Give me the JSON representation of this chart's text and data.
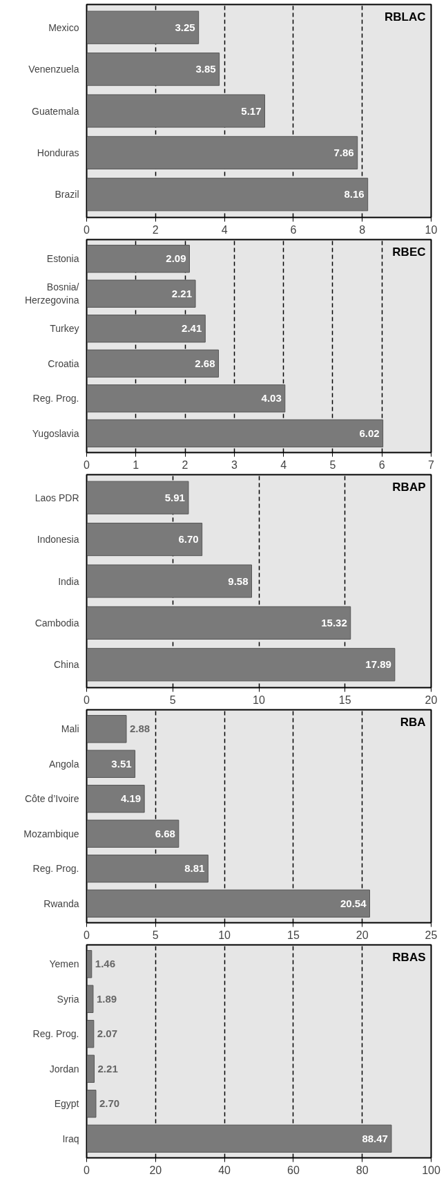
{
  "chart_data": [
    {
      "type": "bar",
      "orientation": "horizontal",
      "title": "RBLAC",
      "categories": [
        "Mexico",
        "Venenzuela",
        "Guatemala",
        "Honduras",
        "Brazil"
      ],
      "values": [
        3.25,
        3.85,
        5.17,
        7.86,
        8.16
      ],
      "color": "#7a7a7a",
      "xlim": [
        0,
        10
      ],
      "xticks": [
        0,
        2,
        4,
        6,
        8,
        10
      ],
      "grid": "x",
      "data_labels": true
    },
    {
      "type": "bar",
      "orientation": "horizontal",
      "title": "RBEC",
      "categories": [
        "Estonia",
        "Bosnia/\nHerzegovina",
        "Turkey",
        "Croatia",
        "Reg. Prog.",
        "Yugoslavia"
      ],
      "values": [
        2.09,
        2.21,
        2.41,
        2.68,
        4.03,
        6.02
      ],
      "color": "#7a7a7a",
      "xlim": [
        0,
        7
      ],
      "xticks": [
        0,
        1,
        2,
        3,
        4,
        5,
        6,
        7
      ],
      "grid": "x",
      "data_labels": true
    },
    {
      "type": "bar",
      "orientation": "horizontal",
      "title": "RBAP",
      "categories": [
        "Laos PDR",
        "Indonesia",
        "India",
        "Cambodia",
        "China"
      ],
      "values": [
        5.91,
        6.7,
        9.58,
        15.32,
        17.89
      ],
      "value_labels": [
        "5.91",
        "6.70",
        "9.58",
        "15.32",
        "17.89"
      ],
      "color": "#7a7a7a",
      "xlim": [
        0,
        20
      ],
      "xticks": [
        0,
        5,
        10,
        15,
        20
      ],
      "grid": "x"
    },
    {
      "type": "bar",
      "orientation": "horizontal",
      "title": "RBA",
      "categories": [
        "Mali",
        "Angola",
        "Côte d’Ivoire",
        "Mozambique",
        "Reg. Prog.",
        "Rwanda"
      ],
      "values": [
        2.88,
        3.51,
        4.19,
        6.68,
        8.81,
        20.54
      ],
      "color": "#7a7a7a",
      "xlim": [
        0,
        25
      ],
      "xticks": [
        0,
        5,
        10,
        15,
        20,
        25
      ],
      "grid": "x",
      "data_labels": true
    },
    {
      "type": "bar",
      "orientation": "horizontal",
      "title": "RBAS",
      "categories": [
        "Yemen",
        "Syria",
        "Reg. Prog.",
        "Jordan",
        "Egypt",
        "Iraq"
      ],
      "values": [
        1.46,
        1.89,
        2.07,
        2.21,
        2.7,
        88.47
      ],
      "value_labels": [
        "1.46",
        "1.89",
        "2.07",
        "2.21",
        "2.70",
        "88.47"
      ],
      "color": "#7a7a7a",
      "xlim": [
        0,
        100
      ],
      "xticks": [
        0,
        20,
        40,
        60,
        80,
        100
      ],
      "grid": "x"
    }
  ]
}
